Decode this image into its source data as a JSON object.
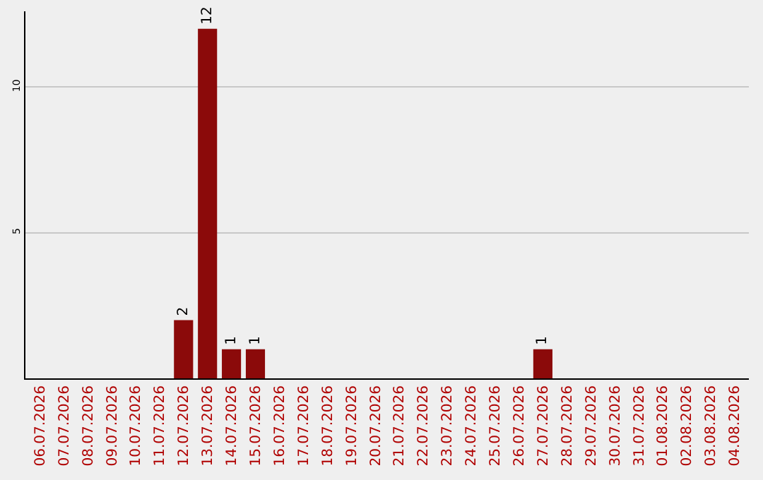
{
  "chart_data": {
    "type": "bar",
    "categories": [
      "06.07.2026",
      "07.07.2026",
      "08.07.2026",
      "09.07.2026",
      "10.07.2026",
      "11.07.2026",
      "12.07.2026",
      "13.07.2026",
      "14.07.2026",
      "15.07.2026",
      "16.07.2026",
      "17.07.2026",
      "18.07.2026",
      "19.07.2026",
      "20.07.2026",
      "21.07.2026",
      "22.07.2026",
      "23.07.2026",
      "24.07.2026",
      "25.07.2026",
      "26.07.2026",
      "27.07.2026",
      "28.07.2026",
      "29.07.2026",
      "30.07.2026",
      "31.07.2026",
      "01.08.2026",
      "02.08.2026",
      "03.08.2026",
      "04.08.2026"
    ],
    "values": [
      0,
      0,
      0,
      0,
      0,
      0,
      2,
      12,
      1,
      1,
      0,
      0,
      0,
      0,
      0,
      0,
      0,
      0,
      0,
      0,
      0,
      1,
      0,
      0,
      0,
      0,
      0,
      0,
      0,
      0
    ],
    "value_labels": [
      null,
      null,
      null,
      null,
      null,
      null,
      "2",
      "12",
      "1",
      "1",
      null,
      null,
      null,
      null,
      null,
      null,
      null,
      null,
      null,
      null,
      null,
      "1",
      null,
      null,
      null,
      null,
      null,
      null,
      null,
      null
    ],
    "color": "#8b0a0a",
    "ylim": [
      0,
      12.6
    ],
    "yticks": [
      5,
      10
    ],
    "grid": "y",
    "legend": false
  }
}
